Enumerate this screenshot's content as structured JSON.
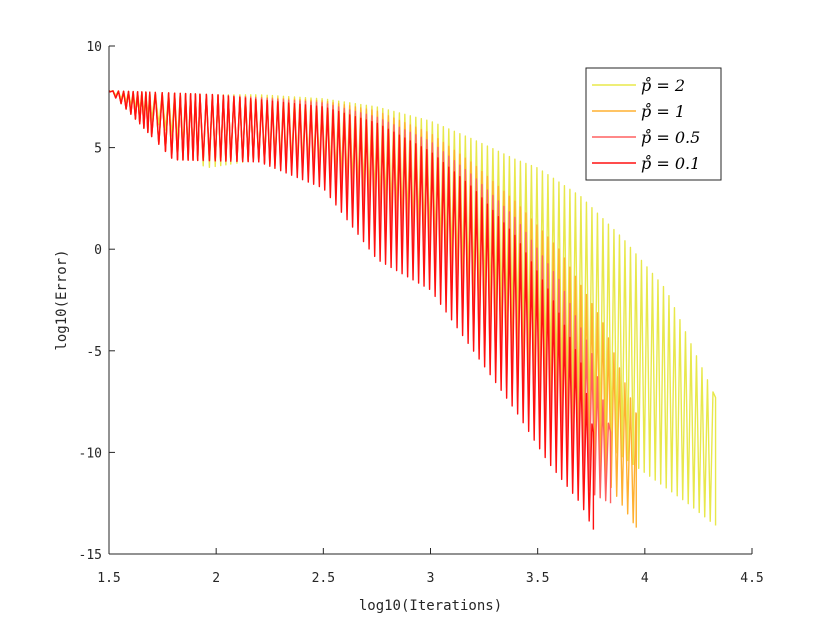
{
  "chart_data": {
    "type": "line",
    "xlabel": "log10(Iterations)",
    "ylabel": "log10(Error)",
    "xlim": [
      1.5,
      4.5
    ],
    "ylim": [
      -15,
      10
    ],
    "xticks": [
      "1.5",
      "2",
      "2.5",
      "3",
      "3.5",
      "4",
      "4.5"
    ],
    "yticks": [
      "10",
      "5",
      "0",
      "-5",
      "-10",
      "-15"
    ],
    "grid": false,
    "legend_position": "top-right",
    "series": [
      {
        "name": "p̊ = 2",
        "color": "#e8e84a",
        "x_end": 4.33,
        "upper": [
          [
            1.5,
            7.8
          ],
          [
            2.0,
            7.6
          ],
          [
            2.2,
            7.6
          ],
          [
            2.5,
            7.4
          ],
          [
            2.75,
            7.0
          ],
          [
            3.0,
            6.3
          ],
          [
            3.2,
            5.4
          ],
          [
            3.4,
            4.4
          ],
          [
            3.5,
            4.0
          ],
          [
            3.7,
            2.6
          ],
          [
            3.9,
            0.5
          ],
          [
            4.1,
            -2.0
          ],
          [
            4.33,
            -7.3
          ]
        ],
        "lower": [
          [
            1.5,
            7.8
          ],
          [
            1.75,
            6.0
          ],
          [
            1.95,
            4.0
          ],
          [
            2.2,
            4.4
          ],
          [
            2.5,
            4.0
          ],
          [
            2.75,
            2.5
          ],
          [
            3.0,
            0.5
          ],
          [
            3.2,
            -2.0
          ],
          [
            3.4,
            -4.0
          ],
          [
            3.6,
            -7.0
          ],
          [
            3.8,
            -9.5
          ],
          [
            4.0,
            -11.0
          ],
          [
            4.2,
            -12.5
          ],
          [
            4.33,
            -13.6
          ]
        ]
      },
      {
        "name": "p̊ = 1",
        "color": "#ffb030",
        "x_end": 3.96,
        "upper": [
          [
            1.5,
            7.8
          ],
          [
            2.0,
            7.6
          ],
          [
            2.5,
            7.3
          ],
          [
            2.75,
            6.8
          ],
          [
            3.0,
            5.7
          ],
          [
            3.2,
            4.2
          ],
          [
            3.4,
            2.3
          ],
          [
            3.6,
            0.0
          ],
          [
            3.8,
            -3.5
          ],
          [
            3.96,
            -8.1
          ]
        ],
        "lower": [
          [
            1.5,
            7.8
          ],
          [
            1.8,
            4.4
          ],
          [
            2.2,
            4.3
          ],
          [
            2.5,
            3.8
          ],
          [
            2.75,
            2.0
          ],
          [
            3.0,
            0.0
          ],
          [
            3.2,
            -3.0
          ],
          [
            3.4,
            -6.0
          ],
          [
            3.6,
            -8.5
          ],
          [
            3.8,
            -11.0
          ],
          [
            3.96,
            -13.7
          ]
        ]
      },
      {
        "name": "p̊ = 0.5",
        "color": "#ff6060",
        "x_end": 3.84,
        "upper": [
          [
            1.5,
            7.8
          ],
          [
            2.0,
            7.6
          ],
          [
            2.5,
            7.2
          ],
          [
            2.75,
            6.5
          ],
          [
            3.0,
            5.3
          ],
          [
            3.2,
            3.6
          ],
          [
            3.4,
            1.5
          ],
          [
            3.6,
            -1.5
          ],
          [
            3.75,
            -5.0
          ],
          [
            3.84,
            -9.0
          ]
        ],
        "lower": [
          [
            1.5,
            7.8
          ],
          [
            1.8,
            4.4
          ],
          [
            2.2,
            4.3
          ],
          [
            2.5,
            3.5
          ],
          [
            2.75,
            1.0
          ],
          [
            3.0,
            -1.0
          ],
          [
            3.2,
            -4.5
          ],
          [
            3.4,
            -7.5
          ],
          [
            3.6,
            -10.0
          ],
          [
            3.75,
            -12.0
          ],
          [
            3.84,
            -12.5
          ]
        ]
      },
      {
        "name": "p̊ = 0.1",
        "color": "#ff1010",
        "x_end": 3.76,
        "upper": [
          [
            1.5,
            7.8
          ],
          [
            2.0,
            7.6
          ],
          [
            2.5,
            7.0
          ],
          [
            2.75,
            6.2
          ],
          [
            3.0,
            4.8
          ],
          [
            3.2,
            3.0
          ],
          [
            3.4,
            0.6
          ],
          [
            3.55,
            -2.0
          ],
          [
            3.7,
            -5.5
          ],
          [
            3.76,
            -9.0
          ]
        ],
        "lower": [
          [
            1.5,
            7.8
          ],
          [
            1.8,
            4.4
          ],
          [
            2.2,
            4.3
          ],
          [
            2.5,
            3.0
          ],
          [
            2.75,
            -0.5
          ],
          [
            3.0,
            -2.0
          ],
          [
            3.2,
            -5.0
          ],
          [
            3.4,
            -8.0
          ],
          [
            3.55,
            -10.5
          ],
          [
            3.7,
            -12.5
          ],
          [
            3.76,
            -13.8
          ]
        ]
      }
    ]
  }
}
